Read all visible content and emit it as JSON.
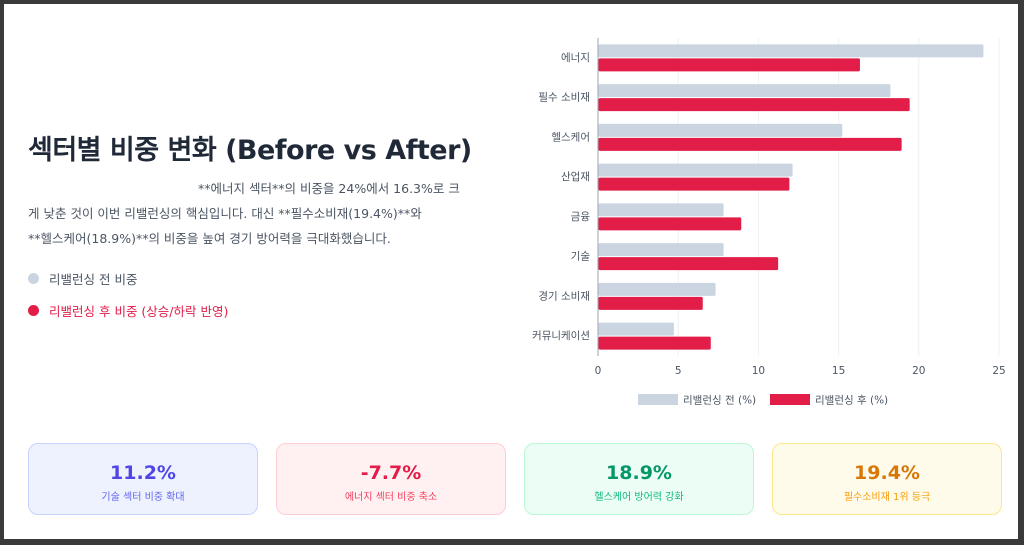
{
  "title": "섹터별 비중 변화 (Before vs After)",
  "description": {
    "line1": "**에너지 섹터**의 비중을 24%에서 16.3%로 크",
    "line2": "게 낮춘 것이 이번 리밸런싱의 핵심입니다. 대신 **필수소비재(19.4%)**와",
    "line3": "**헬스케어(18.9%)**의 비중을 높여 경기 방어력을 극대화했습니다."
  },
  "legend_left": {
    "before": "리밸런싱 전 비중",
    "after": "리밸런싱 후 비중 (상승/하락 반영)"
  },
  "chart_data": {
    "type": "bar",
    "orientation": "horizontal",
    "categories": [
      "에너지",
      "필수 소비재",
      "헬스케어",
      "산업재",
      "금융",
      "기술",
      "경기 소비재",
      "커뮤니케이션"
    ],
    "series": [
      {
        "name": "리밸런싱 전 (%)",
        "color": "#cbd5e1",
        "values": [
          24,
          18.2,
          15.2,
          12.1,
          7.8,
          7.8,
          7.3,
          4.7
        ]
      },
      {
        "name": "리밸런싱 후 (%)",
        "color": "#e11d48",
        "values": [
          16.3,
          19.4,
          18.9,
          11.9,
          8.9,
          11.2,
          6.5,
          7.0
        ]
      }
    ],
    "xlim": [
      0,
      25
    ],
    "xticks": [
      0,
      5,
      10,
      15,
      20,
      25
    ],
    "grid": true,
    "legend_position": "bottom"
  },
  "cards": [
    {
      "value": "11.2%",
      "caption": "기술 섹터 비중 확대"
    },
    {
      "value": "-7.7%",
      "caption": "에너지 섹터 비중 축소"
    },
    {
      "value": "18.9%",
      "caption": "헬스케어 방어력 강화"
    },
    {
      "value": "19.4%",
      "caption": "필수소비재 1위 등극"
    }
  ]
}
